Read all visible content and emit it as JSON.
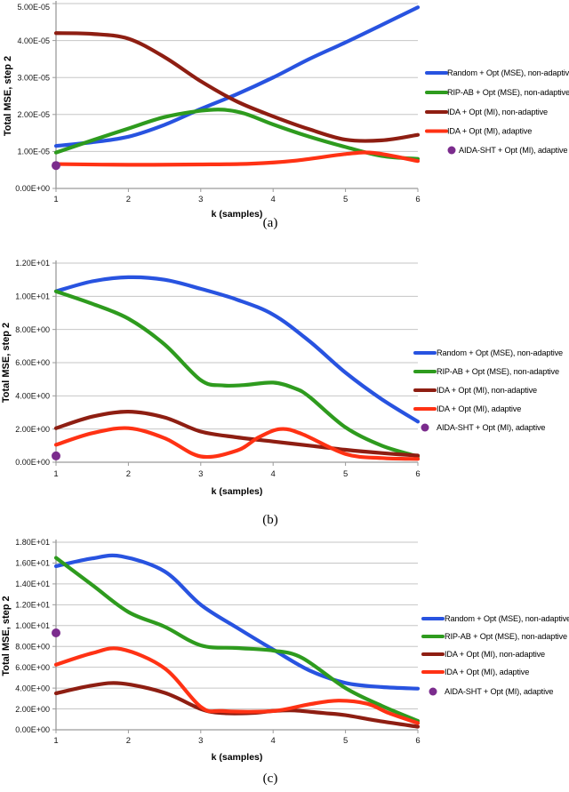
{
  "figure": {
    "background": "#FFFFFF",
    "captions": {
      "a": "(a)",
      "b": "(b)",
      "c": "(c)"
    }
  },
  "colors": {
    "series_blue": "#2853E0",
    "series_green": "#2E9B1E",
    "series_darkred": "#8E1E12",
    "series_red": "#FF3214",
    "series_purple": "#7B2C8D",
    "gridline": "#C6C6C6",
    "axis": "#9B9B9B",
    "text": "#000000"
  },
  "legend": [
    {
      "label": "Random + Opt (MSE), non-adaptive",
      "color": "series_blue",
      "marker": "line"
    },
    {
      "label": "RIP-AB + Opt (MSE), non-adaptive",
      "color": "series_green",
      "marker": "line"
    },
    {
      "label": "IDA + Opt (MI), non-adaptive",
      "color": "series_darkred",
      "marker": "line"
    },
    {
      "label": "IDA + Opt (MI), adaptive",
      "color": "series_red",
      "marker": "line"
    },
    {
      "label": "AIDA-SHT + Opt (MI), adaptive",
      "color": "series_purple",
      "marker": "dot"
    }
  ],
  "chart_data": [
    {
      "type": "line",
      "xlabel": "k (samples)",
      "ylabel": "Total MSE, step 2",
      "xlim": [
        1,
        6
      ],
      "ylim": [
        0,
        5e-05
      ],
      "grid": true,
      "legend_position": "right",
      "xticks": [
        {
          "v": 1,
          "label": "1"
        },
        {
          "v": 2,
          "label": "2"
        },
        {
          "v": 3,
          "label": "3"
        },
        {
          "v": 4,
          "label": "4"
        },
        {
          "v": 5,
          "label": "5"
        },
        {
          "v": 6,
          "label": "6"
        }
      ],
      "yticks": [
        {
          "v": 0,
          "label": "0.00E+00"
        },
        {
          "v": 1e-05,
          "label": "1.00E-05"
        },
        {
          "v": 2e-05,
          "label": "2.00E-05"
        },
        {
          "v": 3e-05,
          "label": "3.00E-05"
        },
        {
          "v": 4e-05,
          "label": "4.00E-05"
        },
        {
          "v": 5e-05,
          "label": "5.00E-05"
        }
      ],
      "series": [
        {
          "name": "Random + Opt (MSE), non-adaptive",
          "color": "series_blue",
          "marker": "line",
          "points": [
            [
              1,
              1.15e-05
            ],
            [
              1.5,
              1.25e-05
            ],
            [
              2,
              1.4e-05
            ],
            [
              2.5,
              1.72e-05
            ],
            [
              3,
              2.15e-05
            ],
            [
              3.5,
              2.55e-05
            ],
            [
              4,
              3e-05
            ],
            [
              4.5,
              3.5e-05
            ],
            [
              5,
              3.95e-05
            ],
            [
              5.5,
              4.42e-05
            ],
            [
              6,
              4.9e-05
            ]
          ]
        },
        {
          "name": "RIP-AB + Opt (MSE), non-adaptive",
          "color": "series_green",
          "marker": "line",
          "points": [
            [
              1,
              9.7e-06
            ],
            [
              1.5,
              1.3e-05
            ],
            [
              2,
              1.62e-05
            ],
            [
              2.5,
              1.93e-05
            ],
            [
              3,
              2.1e-05
            ],
            [
              3.3,
              2.13e-05
            ],
            [
              3.6,
              2.03e-05
            ],
            [
              4,
              1.73e-05
            ],
            [
              4.5,
              1.4e-05
            ],
            [
              5,
              1.12e-05
            ],
            [
              5.5,
              8.8e-06
            ],
            [
              6,
              8e-06
            ]
          ]
        },
        {
          "name": "IDA + Opt (MI), non-adaptive",
          "color": "series_darkred",
          "marker": "line",
          "points": [
            [
              1,
              4.2e-05
            ],
            [
              1.5,
              4.18e-05
            ],
            [
              2,
              4.05e-05
            ],
            [
              2.5,
              3.55e-05
            ],
            [
              3,
              2.9e-05
            ],
            [
              3.5,
              2.35e-05
            ],
            [
              4,
              1.95e-05
            ],
            [
              4.5,
              1.6e-05
            ],
            [
              5,
              1.32e-05
            ],
            [
              5.5,
              1.3e-05
            ],
            [
              6,
              1.45e-05
            ]
          ]
        },
        {
          "name": "IDA + Opt (MI), adaptive",
          "color": "series_red",
          "marker": "line",
          "points": [
            [
              1,
              6.6e-06
            ],
            [
              2,
              6.4e-06
            ],
            [
              3,
              6.5e-06
            ],
            [
              3.7,
              6.7e-06
            ],
            [
              4.3,
              7.5e-06
            ],
            [
              5,
              9.3e-06
            ],
            [
              5.4,
              9.6e-06
            ],
            [
              6,
              7.4e-06
            ]
          ]
        },
        {
          "name": "AIDA-SHT + Opt (MI), adaptive",
          "color": "series_purple",
          "marker": "dot",
          "points": [
            [
              1,
              6.2e-06
            ]
          ]
        }
      ]
    },
    {
      "type": "line",
      "xlabel": "k (samples)",
      "ylabel": "Total MSE, step 2",
      "xlim": [
        1,
        6
      ],
      "ylim": [
        0,
        12
      ],
      "grid": true,
      "legend_position": "right",
      "xticks": [
        {
          "v": 1,
          "label": "1"
        },
        {
          "v": 2,
          "label": "2"
        },
        {
          "v": 3,
          "label": "3"
        },
        {
          "v": 4,
          "label": "4"
        },
        {
          "v": 5,
          "label": "5"
        },
        {
          "v": 6,
          "label": "6"
        }
      ],
      "yticks": [
        {
          "v": 0,
          "label": "0.00E+00"
        },
        {
          "v": 2,
          "label": "2.00E+00"
        },
        {
          "v": 4,
          "label": "4.00E+00"
        },
        {
          "v": 6,
          "label": "6.00E+00"
        },
        {
          "v": 8,
          "label": "8.00E+00"
        },
        {
          "v": 10,
          "label": "1.00E+01"
        },
        {
          "v": 12,
          "label": "1.20E+01"
        }
      ],
      "series": [
        {
          "name": "Random + Opt (MSE), non-adaptive",
          "color": "series_blue",
          "marker": "line",
          "points": [
            [
              1,
              10.3
            ],
            [
              1.5,
              10.9
            ],
            [
              2,
              11.15
            ],
            [
              2.5,
              11.0
            ],
            [
              3,
              10.45
            ],
            [
              3.5,
              9.8
            ],
            [
              4,
              8.9
            ],
            [
              4.5,
              7.3
            ],
            [
              5,
              5.4
            ],
            [
              5.5,
              3.8
            ],
            [
              6,
              2.45
            ]
          ]
        },
        {
          "name": "RIP-AB + Opt (MSE), non-adaptive",
          "color": "series_green",
          "marker": "line",
          "points": [
            [
              1,
              10.3
            ],
            [
              1.5,
              9.55
            ],
            [
              2,
              8.65
            ],
            [
              2.5,
              7.1
            ],
            [
              3,
              4.95
            ],
            [
              3.3,
              4.63
            ],
            [
              3.6,
              4.65
            ],
            [
              4,
              4.8
            ],
            [
              4.3,
              4.45
            ],
            [
              4.5,
              3.95
            ],
            [
              5,
              2.1
            ],
            [
              5.5,
              1.0
            ],
            [
              6,
              0.35
            ]
          ]
        },
        {
          "name": "IDA + Opt (MI), non-adaptive",
          "color": "series_darkred",
          "marker": "line",
          "points": [
            [
              1,
              2.05
            ],
            [
              1.5,
              2.75
            ],
            [
              2,
              3.05
            ],
            [
              2.5,
              2.7
            ],
            [
              3,
              1.85
            ],
            [
              3.5,
              1.5
            ],
            [
              4,
              1.25
            ],
            [
              4.5,
              1.0
            ],
            [
              5,
              0.75
            ],
            [
              5.5,
              0.55
            ],
            [
              6,
              0.4
            ]
          ]
        },
        {
          "name": "IDA + Opt (MI), adaptive",
          "color": "series_red",
          "marker": "line",
          "points": [
            [
              1,
              1.05
            ],
            [
              1.5,
              1.75
            ],
            [
              2,
              2.05
            ],
            [
              2.5,
              1.45
            ],
            [
              3,
              0.35
            ],
            [
              3.5,
              0.7
            ],
            [
              3.8,
              1.5
            ],
            [
              4.1,
              2.0
            ],
            [
              4.4,
              1.7
            ],
            [
              5,
              0.5
            ],
            [
              5.5,
              0.25
            ],
            [
              6,
              0.2
            ]
          ]
        },
        {
          "name": "AIDA-SHT + Opt (MI), adaptive",
          "color": "series_purple",
          "marker": "dot",
          "points": [
            [
              1,
              0.38
            ]
          ]
        }
      ]
    },
    {
      "type": "line",
      "xlabel": "k (samples)",
      "ylabel": "Total MSE, step 2",
      "xlim": [
        1,
        6
      ],
      "ylim": [
        0,
        18
      ],
      "grid": true,
      "legend_position": "right",
      "xticks": [
        {
          "v": 1,
          "label": "1"
        },
        {
          "v": 2,
          "label": "2"
        },
        {
          "v": 3,
          "label": "3"
        },
        {
          "v": 4,
          "label": "4"
        },
        {
          "v": 5,
          "label": "5"
        },
        {
          "v": 6,
          "label": "6"
        }
      ],
      "yticks": [
        {
          "v": 0,
          "label": "0.00E+00"
        },
        {
          "v": 2,
          "label": "2.00E+00"
        },
        {
          "v": 4,
          "label": "4.00E+00"
        },
        {
          "v": 6,
          "label": "6.00E+00"
        },
        {
          "v": 8,
          "label": "8.00E+00"
        },
        {
          "v": 10,
          "label": "1.00E+01"
        },
        {
          "v": 12,
          "label": "1.20E+01"
        },
        {
          "v": 14,
          "label": "1.40E+01"
        },
        {
          "v": 16,
          "label": "1.60E+01"
        },
        {
          "v": 18,
          "label": "1.80E+01"
        }
      ],
      "series": [
        {
          "name": "Random + Opt (MSE), non-adaptive",
          "color": "series_blue",
          "marker": "line",
          "points": [
            [
              1,
              15.7
            ],
            [
              1.5,
              16.45
            ],
            [
              1.9,
              16.65
            ],
            [
              2.5,
              15.2
            ],
            [
              3,
              12.0
            ],
            [
              3.5,
              9.8
            ],
            [
              4,
              7.7
            ],
            [
              4.5,
              5.7
            ],
            [
              5,
              4.5
            ],
            [
              5.5,
              4.1
            ],
            [
              6,
              3.95
            ]
          ]
        },
        {
          "name": "RIP-AB + Opt (MSE), non-adaptive",
          "color": "series_green",
          "marker": "line",
          "points": [
            [
              1,
              16.5
            ],
            [
              1.5,
              13.9
            ],
            [
              2,
              11.3
            ],
            [
              2.5,
              9.9
            ],
            [
              3,
              8.1
            ],
            [
              3.5,
              7.85
            ],
            [
              4,
              7.6
            ],
            [
              4.4,
              6.9
            ],
            [
              5,
              4.0
            ],
            [
              5.5,
              2.3
            ],
            [
              6,
              0.85
            ]
          ]
        },
        {
          "name": "IDA + Opt (MI), non-adaptive",
          "color": "series_darkred",
          "marker": "line",
          "points": [
            [
              1,
              3.5
            ],
            [
              1.5,
              4.25
            ],
            [
              1.9,
              4.45
            ],
            [
              2.5,
              3.55
            ],
            [
              3,
              2.0
            ],
            [
              3.3,
              1.6
            ],
            [
              3.7,
              1.6
            ],
            [
              4,
              1.8
            ],
            [
              4.3,
              1.85
            ],
            [
              4.7,
              1.6
            ],
            [
              5,
              1.4
            ],
            [
              5.5,
              0.8
            ],
            [
              6,
              0.3
            ]
          ]
        },
        {
          "name": "IDA + Opt (MI), adaptive",
          "color": "series_red",
          "marker": "line",
          "points": [
            [
              1,
              6.25
            ],
            [
              1.5,
              7.35
            ],
            [
              1.9,
              7.75
            ],
            [
              2.5,
              5.9
            ],
            [
              3,
              2.2
            ],
            [
              3.3,
              1.8
            ],
            [
              4,
              1.8
            ],
            [
              4.5,
              2.45
            ],
            [
              4.9,
              2.8
            ],
            [
              5.3,
              2.5
            ],
            [
              5.6,
              1.6
            ],
            [
              6,
              0.65
            ]
          ]
        },
        {
          "name": "AIDA-SHT + Opt (MI), adaptive",
          "color": "series_purple",
          "marker": "dot",
          "points": [
            [
              1,
              9.3
            ]
          ]
        }
      ]
    }
  ]
}
